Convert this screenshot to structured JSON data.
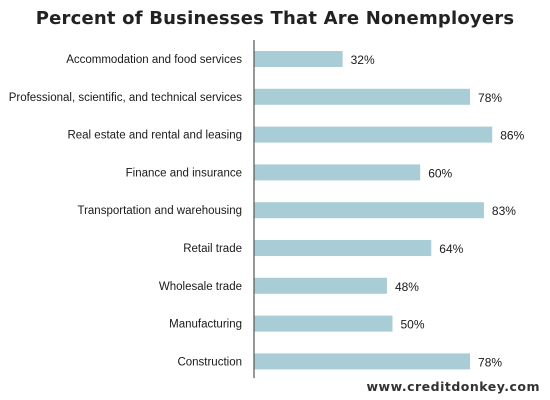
{
  "colors": {
    "bar": "#a9cdd6",
    "axis": "#555555",
    "text": "#1a1a1a"
  },
  "watermark": "www.creditdonkey.com",
  "chart_data": {
    "type": "bar",
    "orientation": "horizontal",
    "title": "Percent of Businesses That Are Nonemployers",
    "xlabel": "",
    "ylabel": "",
    "xlim": [
      0,
      100
    ],
    "grid": false,
    "legend": "none",
    "categories": [
      "Accommodation and food services",
      "Professional, scientific, and technical services",
      "Real estate and rental and leasing",
      "Finance and insurance",
      "Transportation and warehousing",
      "Retail trade",
      "Wholesale trade",
      "Manufacturing",
      "Construction"
    ],
    "values": [
      32,
      78,
      86,
      60,
      83,
      64,
      48,
      50,
      78
    ],
    "value_labels": [
      "32%",
      "78%",
      "86%",
      "60%",
      "83%",
      "64%",
      "48%",
      "50%",
      "78%"
    ]
  }
}
